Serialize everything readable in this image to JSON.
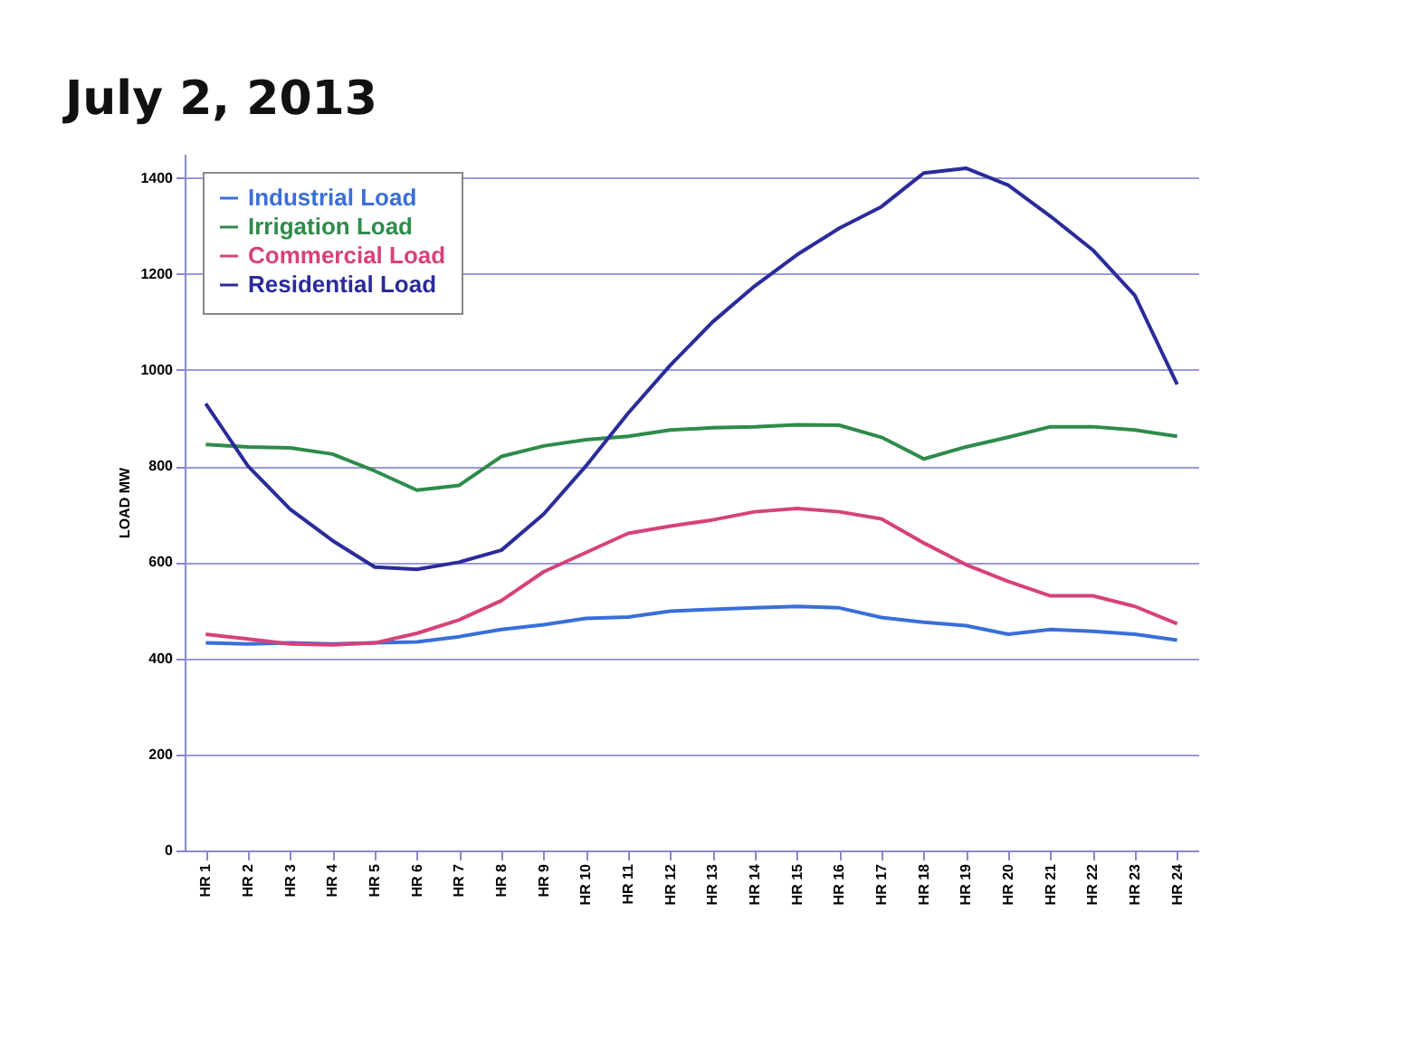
{
  "chart_data": {
    "type": "line",
    "title": "July 2, 2013",
    "ylabel": "LOAD MW",
    "categories": [
      "HR 1",
      "HR 2",
      "HR 3",
      "HR 4",
      "HR 5",
      "HR 6",
      "HR 7",
      "HR 8",
      "HR 9",
      "HR 10",
      "HR 11",
      "HR 12",
      "HR 13",
      "HR 14",
      "HR 15",
      "HR 16",
      "HR 17",
      "HR 18",
      "HR 19",
      "HR 20",
      "HR 21",
      "HR 22",
      "HR 23",
      "HR 24"
    ],
    "series": [
      {
        "name": "Industrial Load",
        "color": "#3a6fd8",
        "values": [
          432,
          430,
          432,
          430,
          432,
          434,
          445,
          460,
          470,
          483,
          486,
          498,
          502,
          505,
          508,
          505,
          485,
          475,
          468,
          450,
          460,
          456,
          450,
          438
        ]
      },
      {
        "name": "Irrigation Load",
        "color": "#2e8b4a",
        "values": [
          845,
          840,
          838,
          825,
          790,
          750,
          760,
          820,
          842,
          855,
          862,
          875,
          880,
          882,
          886,
          885,
          860,
          815,
          840,
          860,
          882,
          882,
          875,
          862
        ]
      },
      {
        "name": "Commercial Load",
        "color": "#d6427a",
        "values": [
          450,
          440,
          430,
          428,
          432,
          452,
          480,
          520,
          580,
          620,
          660,
          675,
          688,
          705,
          712,
          705,
          690,
          640,
          595,
          560,
          530,
          530,
          508,
          472
        ]
      },
      {
        "name": "Residential Load",
        "color": "#2b2b9a",
        "values": [
          930,
          800,
          710,
          645,
          590,
          585,
          600,
          625,
          700,
          800,
          910,
          1010,
          1100,
          1175,
          1240,
          1295,
          1340,
          1410,
          1420,
          1385,
          1320,
          1250,
          1155,
          970
        ]
      }
    ],
    "ylim": [
      0,
      1450
    ],
    "yticks": [
      0,
      200,
      400,
      600,
      800,
      1000,
      1200,
      1400
    ],
    "grid": "y",
    "legend": "top left",
    "marker": "none",
    "line_style": "solid"
  }
}
